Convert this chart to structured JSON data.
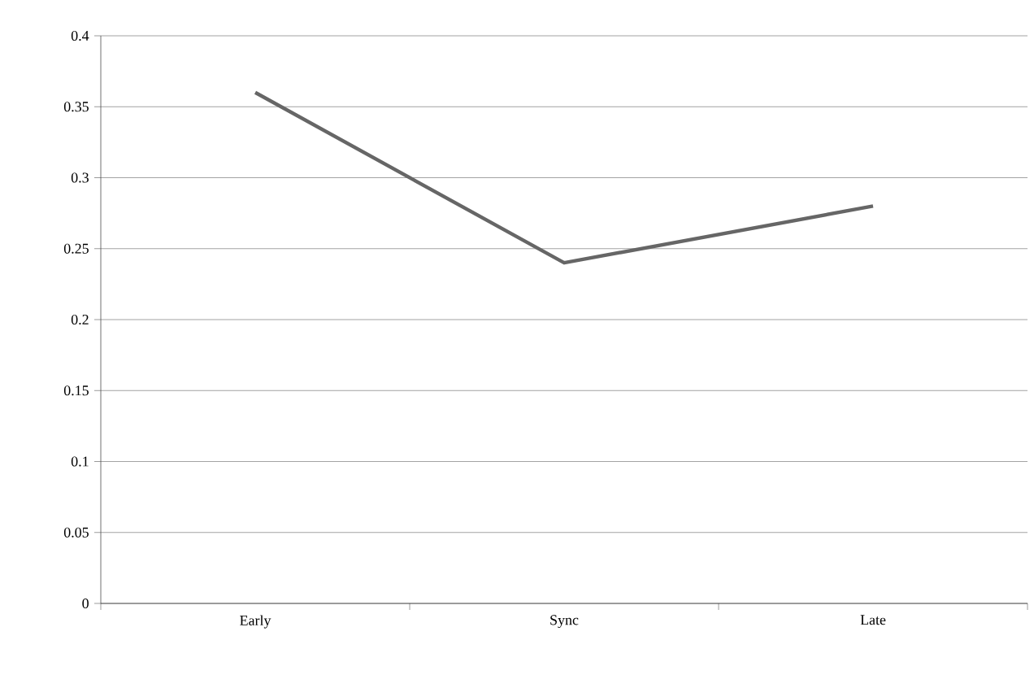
{
  "chart_data": {
    "type": "line",
    "categories": [
      "Early",
      "Sync",
      "Late"
    ],
    "series": [
      {
        "color": "#666666",
        "values": [
          0.36,
          0.24,
          0.28
        ]
      }
    ],
    "ylim": [
      0,
      0.4
    ],
    "yticks": [
      0,
      0.05,
      0.1,
      0.15,
      0.2,
      0.25,
      0.3,
      0.35,
      0.4
    ],
    "grid": "y",
    "marker": "none",
    "line_style": "solid"
  }
}
